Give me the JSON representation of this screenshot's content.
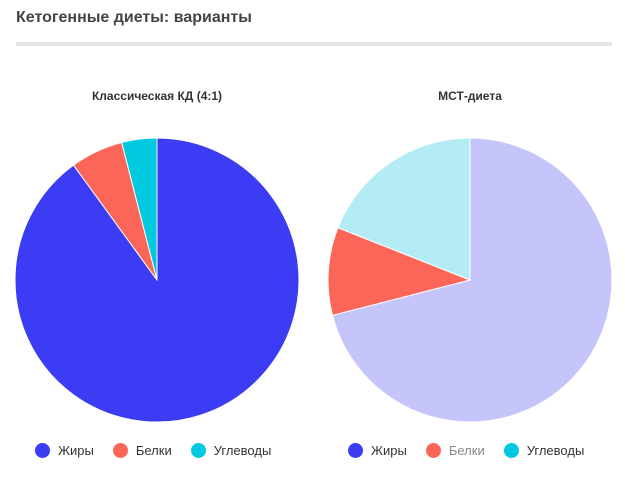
{
  "page": {
    "title": "Кетогенные диеты: варианты"
  },
  "chart_data": [
    {
      "type": "pie",
      "title": "Классическая КД (4:1)",
      "categories": [
        "Жиры",
        "Белки",
        "Углеводы"
      ],
      "values": [
        90,
        6,
        4
      ],
      "colors": [
        "#3d3cf5",
        "#fc6658",
        "#00c9df"
      ],
      "legend_position": "bottom"
    },
    {
      "type": "pie",
      "title": "МСТ-диета",
      "categories": [
        "Жиры",
        "Белки",
        "Углеводы"
      ],
      "values": [
        71,
        10,
        19
      ],
      "colors": [
        "#c5c5fc",
        "#fc6658",
        "#b3ecf4"
      ],
      "legend_colors": [
        "#3d3cf5",
        "#fc6658",
        "#00c9df"
      ],
      "legend_position": "bottom",
      "legend_dimmed": [
        "Белки"
      ]
    }
  ]
}
